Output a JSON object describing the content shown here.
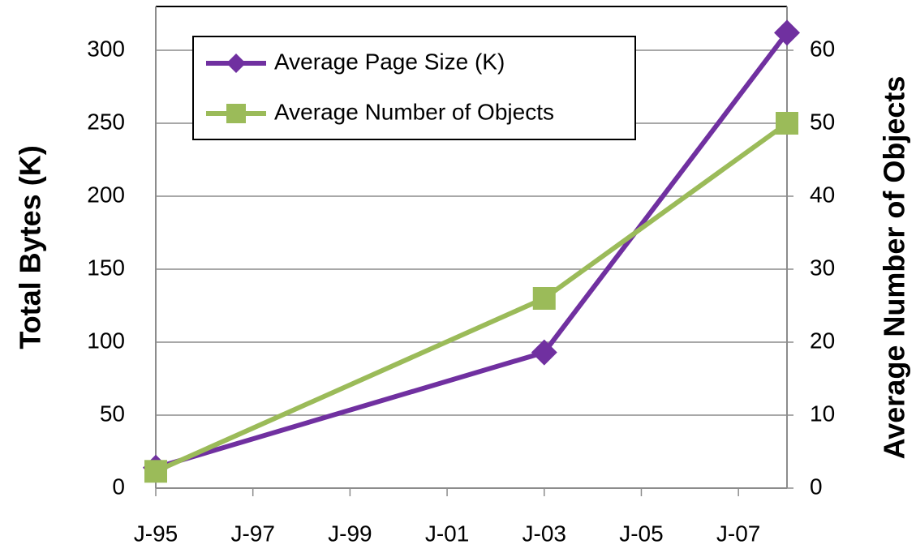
{
  "chart_data": {
    "type": "line",
    "x": [
      "1995-01",
      "2003-01",
      "2008-01"
    ],
    "xlim": [
      "1995-01",
      "2008-01"
    ],
    "xticks": [
      {
        "value": "1995-01",
        "label": "J-95"
      },
      {
        "value": "1997-01",
        "label": "J-97"
      },
      {
        "value": "1999-01",
        "label": "J-99"
      },
      {
        "value": "2001-01",
        "label": "J-01"
      },
      {
        "value": "2003-01",
        "label": "J-03"
      },
      {
        "value": "2005-01",
        "label": "J-05"
      },
      {
        "value": "2007-01",
        "label": "J-07"
      }
    ],
    "y_label": "Total Bytes (K)",
    "y2_label": "Average Number of Objects",
    "ylim": [
      0,
      330
    ],
    "yticks": [
      0,
      50,
      100,
      150,
      200,
      250,
      300
    ],
    "y2lim": [
      0,
      66
    ],
    "y2ticks": [
      0,
      10,
      20,
      30,
      40,
      50,
      60
    ],
    "grid": true,
    "legend": "top-left",
    "series": [
      {
        "name": "Average Page Size (K)",
        "color": "#7030a0",
        "marker": "diamond",
        "values": [
          14,
          93,
          312
        ]
      },
      {
        "name": "Average Number of Objects",
        "color": "#9bbb59",
        "marker": "square",
        "axis": "y2",
        "values": [
          2.3,
          26,
          50
        ]
      }
    ]
  }
}
